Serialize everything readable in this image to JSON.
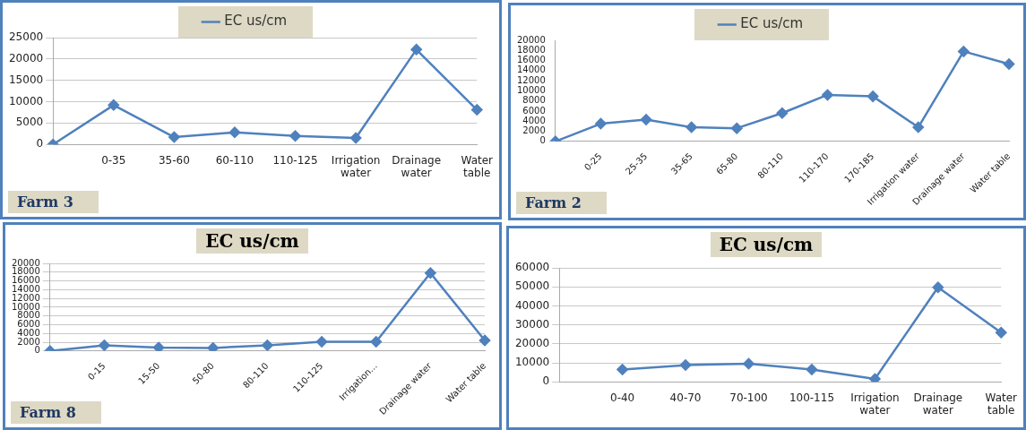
{
  "chart_data": [
    {
      "type": "line",
      "categories": [
        null,
        "0-35",
        "35-60",
        "60-110",
        "110-125",
        "Irrigation water",
        "Drainage water",
        "Water table"
      ],
      "series": [
        {
          "name": "EC us/cm",
          "color": "#4f81bd",
          "values": [
            0,
            9200,
            1700,
            2800,
            2000,
            1500,
            22200,
            8100
          ]
        }
      ],
      "ylim": [
        0,
        25000
      ],
      "yticks": [
        0,
        5000,
        10000,
        15000,
        20000,
        25000
      ],
      "grid": "y",
      "legend": "top",
      "marker": "diamond",
      "annotations": [
        "Farm 3"
      ]
    },
    {
      "type": "line",
      "categories": [
        null,
        "0-25",
        "25-35",
        "35-65",
        "65-80",
        "80-110",
        "110-170",
        "170-185",
        "Irrigation water",
        "Drainage water",
        "Water table"
      ],
      "series": [
        {
          "name": "EC us/cm",
          "color": "#4f81bd",
          "values": [
            0,
            3500,
            4300,
            2800,
            2600,
            5600,
            9200,
            8900,
            2800,
            17800,
            15300
          ]
        }
      ],
      "ylim": [
        0,
        20000
      ],
      "yticks": [
        0,
        2000,
        4000,
        6000,
        8000,
        10000,
        12000,
        14000,
        16000,
        18000,
        20000
      ],
      "grid": false,
      "legend": "top",
      "marker": "diamond",
      "annotations": [
        "Farm 2"
      ]
    },
    {
      "type": "line",
      "title": "EC us/cm",
      "categories": [
        null,
        "0-15",
        "15-50",
        "50-80",
        "80-110",
        "110-125",
        "Irrigation...",
        "Drainage water",
        "Water table"
      ],
      "series": [
        {
          "color": "#4f81bd",
          "values": [
            0,
            1300,
            800,
            700,
            1300,
            2100,
            2100,
            17800,
            2400
          ]
        }
      ],
      "ylim": [
        0,
        20000
      ],
      "yticks": [
        0,
        2000,
        4000,
        6000,
        8000,
        10000,
        12000,
        14000,
        16000,
        18000,
        20000
      ],
      "grid": "y",
      "legend": false,
      "marker": "diamond",
      "annotations": [
        "Farm 8"
      ]
    },
    {
      "type": "line",
      "title": "EC us/cm",
      "categories": [
        null,
        "0-40",
        "40-70",
        "70-100",
        "100-115",
        "Irrigation water",
        "Drainage water",
        "Water table"
      ],
      "series": [
        {
          "color": "#4f81bd",
          "values": [
            null,
            6500,
            8800,
            9500,
            6500,
            1500,
            49800,
            26000
          ]
        }
      ],
      "ylim": [
        0,
        60000
      ],
      "yticks": [
        0,
        10000,
        20000,
        30000,
        40000,
        50000,
        60000
      ],
      "grid": "y",
      "legend": false,
      "marker": "diamond"
    }
  ]
}
